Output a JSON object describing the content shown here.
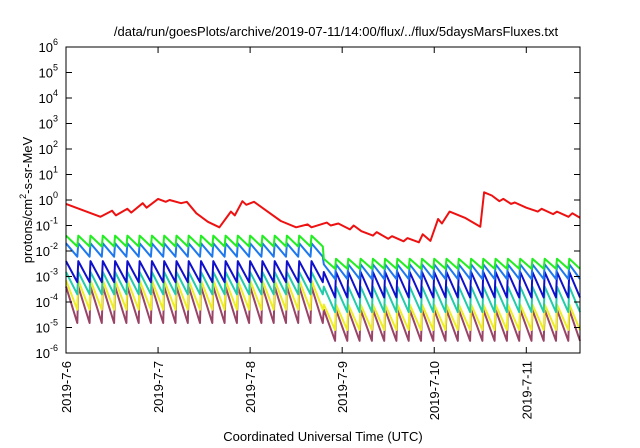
{
  "chart_data": {
    "type": "line",
    "title": "/data/run/goesPlots/archive/2019-07-11/14:00/flux/../flux/5daysMarsFluxes.txt",
    "xlabel": "Coordinated Universal Time (UTC)",
    "ylabel": {
      "prefix": "protons/cm",
      "superscript": "2",
      "suffix": "-s-sr-MeV"
    },
    "yscale": "log",
    "ylim": [
      1e-06,
      1000000.0
    ],
    "y_ticks": [
      {
        "value": 1e-06,
        "base": "10",
        "exp": "-6"
      },
      {
        "value": 1e-05,
        "base": "10",
        "exp": "-5"
      },
      {
        "value": 0.0001,
        "base": "10",
        "exp": "-4"
      },
      {
        "value": 0.001,
        "base": "10",
        "exp": "-3"
      },
      {
        "value": 0.01,
        "base": "10",
        "exp": "-2"
      },
      {
        "value": 0.1,
        "base": "10",
        "exp": "-1"
      },
      {
        "value": 1.0,
        "base": "10",
        "exp": "0"
      },
      {
        "value": 10.0,
        "base": "10",
        "exp": "1"
      },
      {
        "value": 100.0,
        "base": "10",
        "exp": "2"
      },
      {
        "value": 1000.0,
        "base": "10",
        "exp": "3"
      },
      {
        "value": 10000.0,
        "base": "10",
        "exp": "4"
      },
      {
        "value": 100000.0,
        "base": "10",
        "exp": "5"
      },
      {
        "value": 1000000.0,
        "base": "10",
        "exp": "6"
      }
    ],
    "xlim": [
      "2019-07-06T00:00",
      "2019-07-11T14:00"
    ],
    "x_ticks": [
      {
        "date": "2019-07-06",
        "label": "2019-7-6"
      },
      {
        "date": "2019-07-07",
        "label": "2019-7-7"
      },
      {
        "date": "2019-07-08",
        "label": "2019-7-8"
      },
      {
        "date": "2019-07-09",
        "label": "2019-7-9"
      },
      {
        "date": "2019-07-10",
        "label": "2019-7-10"
      },
      {
        "date": "2019-07-11",
        "label": "2019-7-11"
      }
    ],
    "grid": false,
    "legend": "none",
    "series": [
      {
        "color": "#ee1111",
        "points": [
          [
            "2019-07-06T00:00",
            0.7
          ],
          [
            "2019-07-06T09:00",
            0.22
          ],
          [
            "2019-07-06T12:00",
            0.38
          ],
          [
            "2019-07-06T13:00",
            0.25
          ],
          [
            "2019-07-06T16:00",
            0.45
          ],
          [
            "2019-07-06T17:00",
            0.32
          ],
          [
            "2019-07-06T20:00",
            0.75
          ],
          [
            "2019-07-06T21:00",
            0.5
          ],
          [
            "2019-07-07T00:00",
            1.1
          ],
          [
            "2019-07-07T02:00",
            0.85
          ],
          [
            "2019-07-07T03:00",
            1.0
          ],
          [
            "2019-07-07T06:00",
            0.75
          ],
          [
            "2019-07-07T07:30",
            0.85
          ],
          [
            "2019-07-07T10:00",
            0.3
          ],
          [
            "2019-07-07T13:00",
            0.14
          ],
          [
            "2019-07-07T16:00",
            0.085
          ],
          [
            "2019-07-07T19:00",
            0.35
          ],
          [
            "2019-07-07T20:00",
            0.25
          ],
          [
            "2019-07-07T22:00",
            0.9
          ],
          [
            "2019-07-07T23:00",
            0.65
          ],
          [
            "2019-07-08T01:00",
            0.85
          ],
          [
            "2019-07-08T04:00",
            0.4
          ],
          [
            "2019-07-08T08:00",
            0.15
          ],
          [
            "2019-07-08T12:00",
            0.085
          ],
          [
            "2019-07-08T15:00",
            0.11
          ],
          [
            "2019-07-08T16:00",
            0.085
          ],
          [
            "2019-07-08T20:00",
            0.13
          ],
          [
            "2019-07-08T21:00",
            0.1
          ],
          [
            "2019-07-08T23:00",
            0.12
          ],
          [
            "2019-07-09T02:00",
            0.07
          ],
          [
            "2019-07-09T03:00",
            0.1
          ],
          [
            "2019-07-09T05:00",
            0.06
          ],
          [
            "2019-07-09T08:00",
            0.04
          ],
          [
            "2019-07-09T09:00",
            0.055
          ],
          [
            "2019-07-09T12:00",
            0.03
          ],
          [
            "2019-07-09T13:00",
            0.038
          ],
          [
            "2019-07-09T16:00",
            0.024
          ],
          [
            "2019-07-09T17:00",
            0.032
          ],
          [
            "2019-07-09T20:00",
            0.022
          ],
          [
            "2019-07-09T21:00",
            0.045
          ],
          [
            "2019-07-09T23:00",
            0.025
          ],
          [
            "2019-07-10T01:00",
            0.18
          ],
          [
            "2019-07-10T02:00",
            0.12
          ],
          [
            "2019-07-10T04:00",
            0.35
          ],
          [
            "2019-07-10T08:00",
            0.2
          ],
          [
            "2019-07-10T12:00",
            0.09
          ],
          [
            "2019-07-10T13:00",
            2.0
          ],
          [
            "2019-07-10T15:00",
            1.5
          ],
          [
            "2019-07-10T17:00",
            0.9
          ],
          [
            "2019-07-10T18:00",
            1.1
          ],
          [
            "2019-07-10T20:00",
            0.7
          ],
          [
            "2019-07-10T21:00",
            0.8
          ],
          [
            "2019-07-11T00:00",
            0.5
          ],
          [
            "2019-07-11T03:00",
            0.35
          ],
          [
            "2019-07-11T04:00",
            0.45
          ],
          [
            "2019-07-11T07:00",
            0.28
          ],
          [
            "2019-07-11T08:00",
            0.35
          ],
          [
            "2019-07-11T11:00",
            0.22
          ],
          [
            "2019-07-11T12:00",
            0.3
          ],
          [
            "2019-07-11T14:00",
            0.2
          ]
        ]
      },
      {
        "color": "#22ee22",
        "sawtooth": {
          "start": "2019-07-06T00:00",
          "end": "2019-07-11T14:00",
          "period_hours": 3.2,
          "segments": [
            {
              "until": "2019-07-08T16:00",
              "peak": 0.04,
              "trough": 0.015
            },
            {
              "until": "2019-07-11T14:00",
              "peak": 0.005,
              "trough": 0.002
            }
          ]
        }
      },
      {
        "color": "#1e78ee",
        "sawtooth": {
          "start": "2019-07-06T00:00",
          "end": "2019-07-11T14:00",
          "period_hours": 3.2,
          "segments": [
            {
              "until": "2019-07-08T16:00",
              "peak": 0.02,
              "trough": 0.006
            },
            {
              "until": "2019-07-11T14:00",
              "peak": 0.003,
              "trough": 0.0008
            }
          ]
        }
      },
      {
        "color": "#1010cc",
        "sawtooth": {
          "start": "2019-07-06T00:00",
          "end": "2019-07-11T14:00",
          "period_hours": 3.2,
          "segments": [
            {
              "until": "2019-07-08T16:00",
              "peak": 0.004,
              "trough": 0.0006
            },
            {
              "until": "2019-07-11T14:00",
              "peak": 0.0015,
              "trough": 0.00015
            }
          ]
        }
      },
      {
        "color": "#22ccaa",
        "sawtooth": {
          "start": "2019-07-06T00:00",
          "end": "2019-07-11T14:00",
          "period_hours": 3.2,
          "segments": [
            {
              "until": "2019-07-08T16:00",
              "peak": 0.0015,
              "trough": 0.0002
            },
            {
              "until": "2019-07-11T14:00",
              "peak": 0.0004,
              "trough": 4e-05
            }
          ]
        }
      },
      {
        "color": "#eeee22",
        "sawtooth": {
          "start": "2019-07-06T00:00",
          "end": "2019-07-11T14:00",
          "period_hours": 3.2,
          "segments": [
            {
              "until": "2019-07-08T16:00",
              "peak": 0.0007,
              "trough": 5e-05
            },
            {
              "until": "2019-07-11T14:00",
              "peak": 8e-05,
              "trough": 8e-06
            }
          ]
        }
      },
      {
        "color": "#994466",
        "sawtooth": {
          "start": "2019-07-06T00:00",
          "end": "2019-07-11T14:00",
          "period_hours": 3.2,
          "segments": [
            {
              "until": "2019-07-08T16:00",
              "peak": 0.0004,
              "trough": 1.5e-05
            },
            {
              "until": "2019-07-11T14:00",
              "peak": 5e-05,
              "trough": 3e-06
            }
          ]
        }
      }
    ]
  }
}
